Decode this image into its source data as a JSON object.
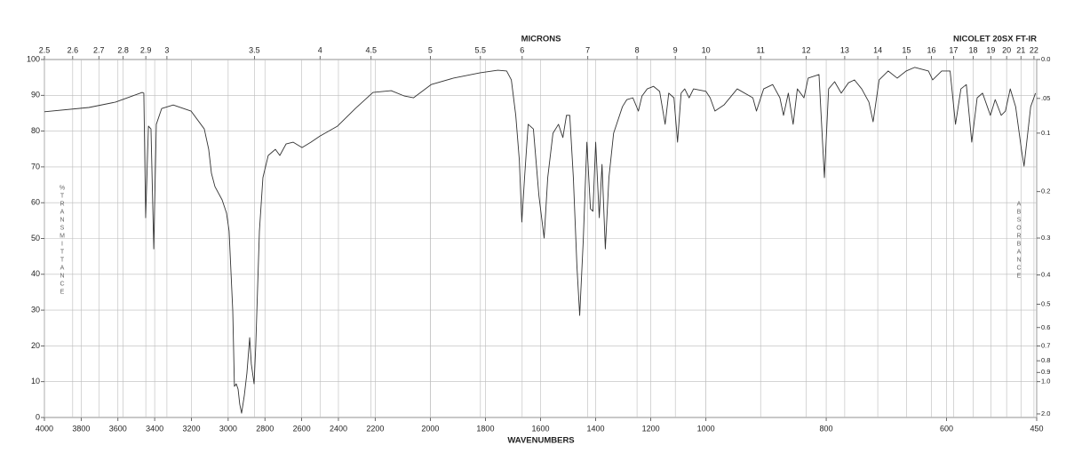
{
  "chart_data": {
    "type": "line",
    "title": "NICOLET 20SX FT-IR",
    "xlabel": "WAVENUMBERS",
    "x2label": "MICRONS",
    "ylabel": "%TRANSMITTANCE",
    "y2label": "ABSORBANCE",
    "color": "#333333",
    "grid": true,
    "xlim": [
      4000,
      450
    ],
    "xbreaks": [
      4000,
      2200,
      1000,
      450
    ],
    "xticks": [
      4000,
      3800,
      3600,
      3400,
      3200,
      3000,
      2800,
      2600,
      2400,
      2200,
      2000,
      1800,
      1600,
      1400,
      1200,
      1000,
      800,
      600,
      450
    ],
    "x2scale": "reciprocal",
    "x2ticks": [
      2.5,
      2.6,
      2.7,
      2.8,
      2.9,
      3,
      3.5,
      4,
      4.5,
      5,
      5.5,
      6,
      7,
      8,
      9,
      10,
      11,
      12,
      13,
      14,
      15,
      16,
      17,
      18,
      19,
      20,
      21,
      22
    ],
    "ylim": [
      0,
      100
    ],
    "yticks": [
      0,
      10,
      20,
      30,
      40,
      50,
      60,
      70,
      80,
      90,
      100
    ],
    "y2scale": "absorbance",
    "y2ticks": [
      {
        "value": 0,
        "label": "0.0"
      },
      {
        "value": 0.05,
        "label": ".05"
      },
      0.1,
      0.2,
      0.3,
      0.4,
      0.5,
      0.6,
      0.7,
      0.8,
      0.9,
      {
        "value": 1,
        "label": "1.0"
      },
      {
        "value": 2,
        "label": "2.0"
      }
    ],
    "x": [
      4000,
      3758,
      3613,
      3468,
      3459,
      3449,
      3434,
      3420,
      3405,
      3391,
      3362,
      3299,
      3202,
      3130,
      3106,
      3091,
      3072,
      3033,
      3009,
      2995,
      2975,
      2966,
      2956,
      2946,
      2937,
      2927,
      2912,
      2898,
      2883,
      2874,
      2859,
      2850,
      2830,
      2811,
      2782,
      2743,
      2719,
      2685,
      2646,
      2598,
      2550,
      2501,
      2405,
      2308,
      2212,
      2142,
      2094,
      2061,
      1997,
      1916,
      1819,
      1755,
      1723,
      1706,
      1690,
      1677,
      1668,
      1658,
      1645,
      1626,
      1606,
      1587,
      1574,
      1555,
      1535,
      1519,
      1506,
      1494,
      1481,
      1468,
      1458,
      1445,
      1432,
      1419,
      1410,
      1400,
      1387,
      1377,
      1365,
      1352,
      1335,
      1319,
      1303,
      1287,
      1265,
      1245,
      1232,
      1213,
      1190,
      1168,
      1148,
      1135,
      1116,
      1103,
      1090,
      1077,
      1061,
      1045,
      1000,
      993,
      985,
      970,
      948,
      922,
      916,
      904,
      889,
      877,
      871,
      863,
      855,
      848,
      837,
      830,
      812,
      803,
      796,
      786,
      775,
      763,
      753,
      741,
      729,
      722,
      712,
      697,
      682,
      667,
      653,
      630,
      623,
      608,
      594,
      585,
      576,
      567,
      558,
      549,
      540,
      531,
      527,
      519,
      509,
      502,
      494,
      485,
      475,
      471,
      460,
      452
    ],
    "values": [
      85.4,
      86.6,
      88.1,
      90.8,
      90.6,
      55.8,
      81.4,
      80.6,
      47.1,
      81.9,
      86.3,
      87.3,
      85.6,
      80.6,
      74.9,
      68.2,
      64.5,
      60.8,
      57.1,
      52.1,
      29.8,
      8.7,
      9.4,
      7.9,
      3.7,
      1.2,
      6.2,
      12.4,
      22.3,
      14.9,
      9.4,
      19.8,
      52.1,
      67.0,
      73.2,
      74.9,
      73.2,
      76.4,
      76.9,
      75.4,
      76.9,
      78.6,
      81.4,
      86.3,
      90.8,
      91.3,
      89.8,
      89.3,
      93.0,
      94.8,
      96.3,
      97.0,
      96.8,
      94.3,
      84.4,
      71.9,
      54.6,
      67.0,
      81.9,
      80.6,
      62.0,
      50.1,
      67.0,
      79.4,
      81.9,
      78.2,
      84.4,
      84.4,
      67.0,
      42.2,
      28.5,
      49.6,
      76.9,
      58.3,
      57.6,
      76.9,
      55.8,
      70.7,
      47.1,
      67.0,
      79.4,
      83.1,
      86.8,
      88.8,
      89.3,
      85.6,
      89.8,
      91.8,
      92.5,
      91.1,
      81.9,
      90.6,
      89.3,
      76.9,
      90.6,
      91.8,
      89.3,
      91.8,
      91.1,
      89.3,
      85.6,
      87.3,
      91.8,
      89.3,
      85.6,
      91.8,
      93.0,
      89.3,
      84.4,
      90.6,
      81.9,
      91.8,
      89.3,
      94.8,
      95.8,
      67.0,
      91.8,
      93.8,
      90.6,
      93.5,
      94.3,
      91.8,
      88.1,
      82.6,
      94.3,
      96.8,
      94.8,
      96.8,
      97.8,
      96.8,
      94.3,
      96.8,
      96.8,
      81.9,
      91.8,
      93.0,
      76.9,
      89.3,
      90.6,
      86.3,
      84.4,
      88.8,
      84.4,
      85.6,
      91.8,
      86.8,
      74.4,
      70.2,
      86.8,
      90.6
    ]
  }
}
